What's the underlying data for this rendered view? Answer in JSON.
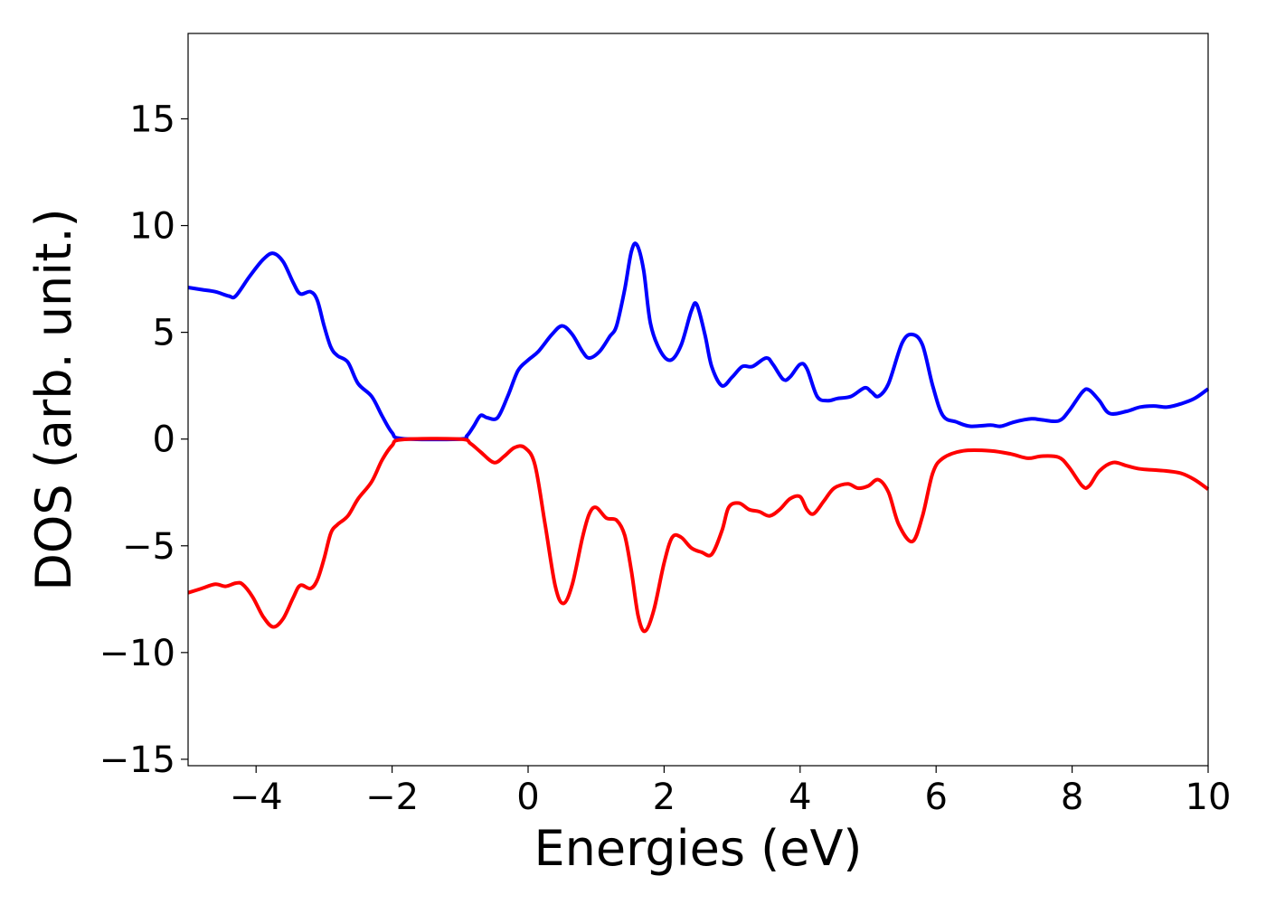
{
  "chart_data": {
    "type": "line",
    "xlabel": "Energies (eV)",
    "ylabel": "DOS (arb. unit.)",
    "xlim": [
      -5,
      10
    ],
    "ylim": [
      -15.3,
      19
    ],
    "xticks": [
      -4,
      -2,
      0,
      2,
      4,
      6,
      8,
      10
    ],
    "xtick_labels": [
      "−4",
      "−2",
      "0",
      "2",
      "4",
      "6",
      "8",
      "10"
    ],
    "yticks": [
      15,
      10,
      5,
      0,
      -5,
      -10,
      -15
    ],
    "ytick_labels": [
      "15",
      "10",
      "5",
      "0",
      "−5",
      "−10",
      "−15"
    ],
    "grid": false,
    "legend": "none",
    "series": [
      {
        "color": "#0000ff",
        "points": [
          [
            -5.0,
            7.1
          ],
          [
            -4.8,
            7.0
          ],
          [
            -4.6,
            6.9
          ],
          [
            -4.4,
            6.7
          ],
          [
            -4.3,
            6.7
          ],
          [
            -4.1,
            7.6
          ],
          [
            -3.9,
            8.4
          ],
          [
            -3.75,
            8.7
          ],
          [
            -3.6,
            8.3
          ],
          [
            -3.45,
            7.3
          ],
          [
            -3.35,
            6.8
          ],
          [
            -3.2,
            6.9
          ],
          [
            -3.1,
            6.5
          ],
          [
            -3.0,
            5.3
          ],
          [
            -2.9,
            4.3
          ],
          [
            -2.8,
            3.9
          ],
          [
            -2.65,
            3.6
          ],
          [
            -2.5,
            2.6
          ],
          [
            -2.3,
            2.0
          ],
          [
            -2.15,
            1.1
          ],
          [
            -2.0,
            0.3
          ],
          [
            -1.85,
            0.02
          ],
          [
            -1.0,
            0.0
          ],
          [
            -0.9,
            0.15
          ],
          [
            -0.8,
            0.6
          ],
          [
            -0.7,
            1.1
          ],
          [
            -0.6,
            1.0
          ],
          [
            -0.45,
            1.0
          ],
          [
            -0.3,
            2.0
          ],
          [
            -0.15,
            3.2
          ],
          [
            0.0,
            3.7
          ],
          [
            0.15,
            4.1
          ],
          [
            0.35,
            4.9
          ],
          [
            0.5,
            5.3
          ],
          [
            0.65,
            4.9
          ],
          [
            0.8,
            4.1
          ],
          [
            0.9,
            3.8
          ],
          [
            1.05,
            4.1
          ],
          [
            1.2,
            4.8
          ],
          [
            1.3,
            5.3
          ],
          [
            1.42,
            7.0
          ],
          [
            1.52,
            8.8
          ],
          [
            1.6,
            9.1
          ],
          [
            1.7,
            7.9
          ],
          [
            1.8,
            5.4
          ],
          [
            1.95,
            4.1
          ],
          [
            2.1,
            3.7
          ],
          [
            2.25,
            4.4
          ],
          [
            2.4,
            6.0
          ],
          [
            2.48,
            6.3
          ],
          [
            2.6,
            4.9
          ],
          [
            2.7,
            3.4
          ],
          [
            2.85,
            2.5
          ],
          [
            3.0,
            2.9
          ],
          [
            3.15,
            3.4
          ],
          [
            3.3,
            3.4
          ],
          [
            3.5,
            3.8
          ],
          [
            3.6,
            3.5
          ],
          [
            3.75,
            2.8
          ],
          [
            3.85,
            2.9
          ],
          [
            4.0,
            3.5
          ],
          [
            4.1,
            3.3
          ],
          [
            4.25,
            2.0
          ],
          [
            4.4,
            1.8
          ],
          [
            4.55,
            1.9
          ],
          [
            4.75,
            2.0
          ],
          [
            4.95,
            2.4
          ],
          [
            5.05,
            2.2
          ],
          [
            5.15,
            2.0
          ],
          [
            5.3,
            2.6
          ],
          [
            5.5,
            4.5
          ],
          [
            5.65,
            4.9
          ],
          [
            5.8,
            4.4
          ],
          [
            5.95,
            2.5
          ],
          [
            6.1,
            1.1
          ],
          [
            6.3,
            0.8
          ],
          [
            6.5,
            0.6
          ],
          [
            6.8,
            0.65
          ],
          [
            6.95,
            0.6
          ],
          [
            7.15,
            0.8
          ],
          [
            7.4,
            0.95
          ],
          [
            7.55,
            0.9
          ],
          [
            7.8,
            0.85
          ],
          [
            7.95,
            1.3
          ],
          [
            8.15,
            2.2
          ],
          [
            8.25,
            2.3
          ],
          [
            8.4,
            1.8
          ],
          [
            8.55,
            1.2
          ],
          [
            8.8,
            1.3
          ],
          [
            9.0,
            1.5
          ],
          [
            9.2,
            1.55
          ],
          [
            9.4,
            1.5
          ],
          [
            9.6,
            1.65
          ],
          [
            9.8,
            1.9
          ],
          [
            10.0,
            2.35
          ]
        ]
      },
      {
        "color": "#ff0000",
        "points": [
          [
            -5.0,
            -7.2
          ],
          [
            -4.8,
            -7.0
          ],
          [
            -4.6,
            -6.8
          ],
          [
            -4.45,
            -6.9
          ],
          [
            -4.3,
            -6.75
          ],
          [
            -4.2,
            -6.8
          ],
          [
            -4.05,
            -7.4
          ],
          [
            -3.9,
            -8.3
          ],
          [
            -3.75,
            -8.8
          ],
          [
            -3.6,
            -8.4
          ],
          [
            -3.45,
            -7.4
          ],
          [
            -3.35,
            -6.85
          ],
          [
            -3.2,
            -7.0
          ],
          [
            -3.1,
            -6.6
          ],
          [
            -3.0,
            -5.6
          ],
          [
            -2.9,
            -4.4
          ],
          [
            -2.8,
            -4.0
          ],
          [
            -2.65,
            -3.6
          ],
          [
            -2.5,
            -2.8
          ],
          [
            -2.3,
            -2.0
          ],
          [
            -2.15,
            -1.0
          ],
          [
            -2.0,
            -0.3
          ],
          [
            -1.85,
            -0.02
          ],
          [
            -1.0,
            0.0
          ],
          [
            -0.85,
            -0.2
          ],
          [
            -0.7,
            -0.6
          ],
          [
            -0.5,
            -1.1
          ],
          [
            -0.35,
            -0.8
          ],
          [
            -0.2,
            -0.4
          ],
          [
            -0.05,
            -0.4
          ],
          [
            0.1,
            -1.2
          ],
          [
            0.25,
            -4.0
          ],
          [
            0.4,
            -6.9
          ],
          [
            0.52,
            -7.7
          ],
          [
            0.65,
            -6.8
          ],
          [
            0.8,
            -4.6
          ],
          [
            0.9,
            -3.5
          ],
          [
            1.0,
            -3.2
          ],
          [
            1.15,
            -3.7
          ],
          [
            1.3,
            -3.8
          ],
          [
            1.42,
            -4.5
          ],
          [
            1.52,
            -6.2
          ],
          [
            1.62,
            -8.3
          ],
          [
            1.72,
            -9.0
          ],
          [
            1.85,
            -8.0
          ],
          [
            2.0,
            -5.8
          ],
          [
            2.12,
            -4.6
          ],
          [
            2.25,
            -4.6
          ],
          [
            2.4,
            -5.1
          ],
          [
            2.55,
            -5.3
          ],
          [
            2.7,
            -5.4
          ],
          [
            2.85,
            -4.3
          ],
          [
            2.95,
            -3.2
          ],
          [
            3.1,
            -3.0
          ],
          [
            3.25,
            -3.3
          ],
          [
            3.4,
            -3.4
          ],
          [
            3.55,
            -3.6
          ],
          [
            3.7,
            -3.3
          ],
          [
            3.85,
            -2.8
          ],
          [
            4.0,
            -2.7
          ],
          [
            4.1,
            -3.3
          ],
          [
            4.2,
            -3.5
          ],
          [
            4.35,
            -2.9
          ],
          [
            4.5,
            -2.3
          ],
          [
            4.7,
            -2.1
          ],
          [
            4.85,
            -2.3
          ],
          [
            5.0,
            -2.2
          ],
          [
            5.15,
            -1.9
          ],
          [
            5.3,
            -2.5
          ],
          [
            5.45,
            -4.0
          ],
          [
            5.65,
            -4.8
          ],
          [
            5.8,
            -3.6
          ],
          [
            5.95,
            -1.6
          ],
          [
            6.1,
            -0.9
          ],
          [
            6.4,
            -0.55
          ],
          [
            6.8,
            -0.55
          ],
          [
            7.1,
            -0.7
          ],
          [
            7.35,
            -0.9
          ],
          [
            7.55,
            -0.8
          ],
          [
            7.8,
            -0.85
          ],
          [
            7.95,
            -1.3
          ],
          [
            8.15,
            -2.2
          ],
          [
            8.25,
            -2.2
          ],
          [
            8.4,
            -1.5
          ],
          [
            8.6,
            -1.1
          ],
          [
            8.8,
            -1.25
          ],
          [
            9.0,
            -1.4
          ],
          [
            9.2,
            -1.45
          ],
          [
            9.4,
            -1.5
          ],
          [
            9.6,
            -1.6
          ],
          [
            9.8,
            -1.9
          ],
          [
            10.0,
            -2.35
          ]
        ]
      }
    ]
  }
}
